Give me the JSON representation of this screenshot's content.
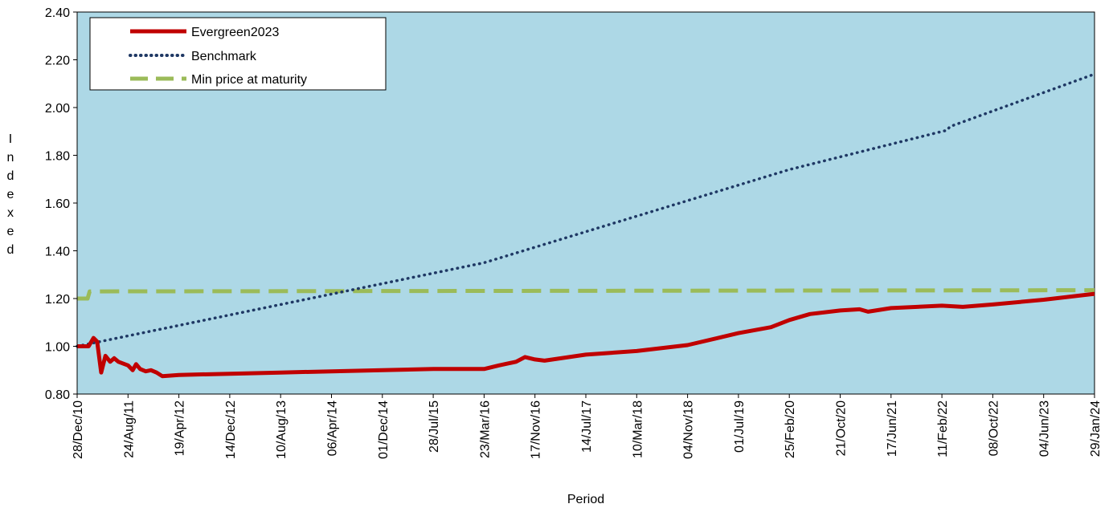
{
  "chart_data": {
    "type": "line",
    "title": "",
    "xlabel": "Period",
    "ylabel": "Indexed",
    "ylim": [
      0.8,
      2.4
    ],
    "y_ticks": [
      "0.80",
      "1.00",
      "1.20",
      "1.40",
      "1.60",
      "1.80",
      "2.00",
      "2.20",
      "2.40"
    ],
    "categories": [
      "28/Dec/10",
      "24/Aug/11",
      "19/Apr/12",
      "14/Dec/12",
      "10/Aug/13",
      "06/Apr/14",
      "01/Dec/14",
      "28/Jul/15",
      "23/Mar/16",
      "17/Nov/16",
      "14/Jul/17",
      "10/Mar/18",
      "04/Nov/18",
      "01/Jul/19",
      "25/Feb/20",
      "21/Oct/20",
      "17/Jun/21",
      "11/Feb/22",
      "08/Oct/22",
      "04/Jun/23",
      "29/Jan/24"
    ],
    "grid": false,
    "legend_position": "top-left",
    "plot_background": "#add8e6",
    "series": [
      {
        "name": "Evergreen2023",
        "color": "#c00000",
        "style": "solid",
        "points": [
          [
            "28/Dec/10",
            1.0
          ],
          [
            "20/Feb/11",
            1.0
          ],
          [
            "15/Mar/11",
            1.035
          ],
          [
            "01/Apr/11",
            1.02
          ],
          [
            "20/Apr/11",
            0.89
          ],
          [
            "10/May/11",
            0.96
          ],
          [
            "01/Jun/11",
            0.935
          ],
          [
            "20/Jun/11",
            0.95
          ],
          [
            "10/Jul/11",
            0.935
          ],
          [
            "24/Aug/11",
            0.92
          ],
          [
            "15/Sep/11",
            0.9
          ],
          [
            "01/Oct/11",
            0.925
          ],
          [
            "20/Oct/11",
            0.905
          ],
          [
            "15/Nov/11",
            0.895
          ],
          [
            "10/Dec/11",
            0.9
          ],
          [
            "05/Jan/12",
            0.89
          ],
          [
            "01/Feb/12",
            0.875
          ],
          [
            "19/Apr/12",
            0.88
          ],
          [
            "14/Dec/12",
            0.885
          ],
          [
            "10/Aug/13",
            0.89
          ],
          [
            "06/Apr/14",
            0.895
          ],
          [
            "01/Dec/14",
            0.9
          ],
          [
            "28/Jul/15",
            0.905
          ],
          [
            "23/Mar/16",
            0.905
          ],
          [
            "01/Jun/16",
            0.92
          ],
          [
            "20/Aug/16",
            0.935
          ],
          [
            "01/Oct/16",
            0.955
          ],
          [
            "17/Nov/16",
            0.945
          ],
          [
            "01/Jan/17",
            0.94
          ],
          [
            "14/Jul/17",
            0.965
          ],
          [
            "10/Mar/18",
            0.98
          ],
          [
            "04/Nov/18",
            1.005
          ],
          [
            "01/Jul/19",
            1.055
          ],
          [
            "01/Dec/19",
            1.08
          ],
          [
            "25/Feb/20",
            1.11
          ],
          [
            "01/Jun/20",
            1.135
          ],
          [
            "21/Oct/20",
            1.15
          ],
          [
            "20/Jan/21",
            1.155
          ],
          [
            "01/Mar/21",
            1.145
          ],
          [
            "17/Jun/21",
            1.16
          ],
          [
            "11/Feb/22",
            1.17
          ],
          [
            "20/May/22",
            1.165
          ],
          [
            "08/Oct/22",
            1.175
          ],
          [
            "04/Jun/23",
            1.195
          ],
          [
            "29/Jan/24",
            1.22
          ]
        ]
      },
      {
        "name": "Benchmark",
        "color": "#1f3864",
        "style": "dotted",
        "points": [
          [
            "28/Dec/10",
            1.0
          ],
          [
            "23/Mar/16",
            1.35
          ],
          [
            "25/Feb/20",
            1.74
          ],
          [
            "11/Feb/22",
            1.9
          ],
          [
            "08/Mar/22",
            1.905
          ],
          [
            "20/Mar/22",
            1.92
          ],
          [
            "29/Jan/24",
            2.14
          ]
        ]
      },
      {
        "name": "Min price at maturity",
        "color": "#9bbb59",
        "style": "dashed",
        "points": [
          [
            "28/Dec/10",
            1.2
          ],
          [
            "15/Feb/11",
            1.2
          ],
          [
            "25/Feb/11",
            1.23
          ],
          [
            "29/Jan/24",
            1.235
          ]
        ]
      }
    ]
  }
}
